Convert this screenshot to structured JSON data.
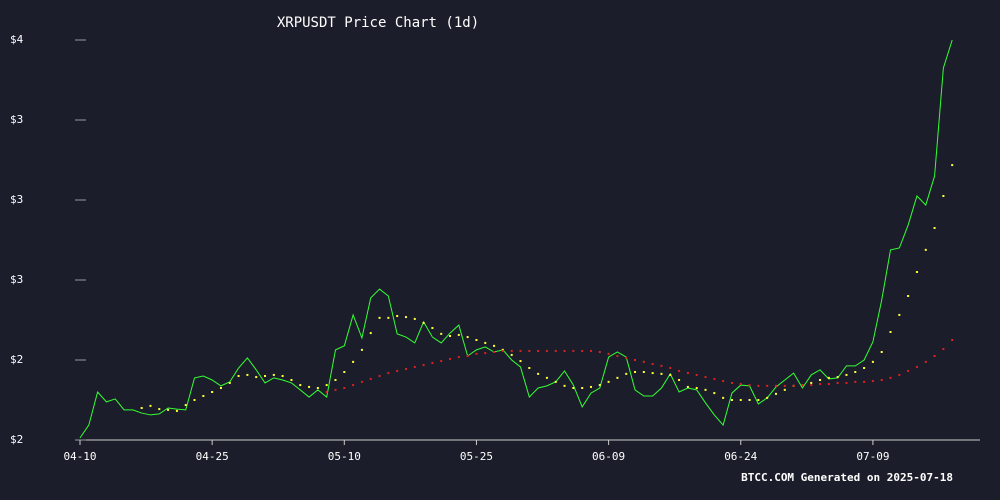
{
  "chart_data": {
    "type": "line",
    "title": "XRPUSDT Price Chart (1d)",
    "footer": "BTCC.COM Generated on 2025-07-18",
    "categories": [
      "04-10",
      null,
      null,
      null,
      null,
      null,
      null,
      null,
      null,
      null,
      null,
      null,
      null,
      null,
      null,
      "04-25",
      null,
      null,
      null,
      null,
      null,
      null,
      null,
      null,
      null,
      null,
      null,
      null,
      null,
      null,
      "05-10",
      null,
      null,
      null,
      null,
      null,
      null,
      null,
      null,
      null,
      null,
      null,
      null,
      null,
      null,
      "05-25",
      null,
      null,
      null,
      null,
      null,
      null,
      null,
      null,
      null,
      null,
      null,
      null,
      null,
      null,
      "06-09",
      null,
      null,
      null,
      null,
      null,
      null,
      null,
      null,
      null,
      null,
      null,
      null,
      null,
      null,
      "06-24",
      null,
      null,
      null,
      null,
      null,
      null,
      null,
      null,
      null,
      null,
      null,
      null,
      null,
      null,
      "07-09",
      null,
      null,
      null,
      null,
      null,
      null,
      null,
      null,
      null
    ],
    "series": [
      {
        "color": "#33ff33",
        "style": "line",
        "values": [
          2.008,
          2.056,
          2.18,
          2.143,
          2.154,
          2.113,
          2.113,
          2.101,
          2.094,
          2.098,
          2.12,
          2.116,
          2.113,
          2.233,
          2.24,
          2.225,
          2.203,
          2.218,
          2.27,
          2.308,
          2.263,
          2.214,
          2.233,
          2.225,
          2.214,
          2.188,
          2.161,
          2.188,
          2.161,
          2.338,
          2.353,
          2.469,
          2.383,
          2.533,
          2.566,
          2.54,
          2.398,
          2.386,
          2.364,
          2.443,
          2.386,
          2.364,
          2.401,
          2.431,
          2.315,
          2.338,
          2.349,
          2.33,
          2.338,
          2.3,
          2.274,
          2.161,
          2.195,
          2.203,
          2.218,
          2.259,
          2.206,
          2.124,
          2.176,
          2.195,
          2.311,
          2.33,
          2.311,
          2.188,
          2.165,
          2.165,
          2.195,
          2.248,
          2.18,
          2.195,
          2.188,
          2.139,
          2.094,
          2.056,
          2.176,
          2.206,
          2.203,
          2.135,
          2.158,
          2.199,
          2.225,
          2.251,
          2.195,
          2.244,
          2.263,
          2.229,
          2.233,
          2.278,
          2.278,
          2.3,
          2.368,
          2.525,
          2.713,
          2.72,
          2.806,
          2.915,
          2.881,
          2.99,
          3.395,
          3.5
        ]
      },
      {
        "color": "#ffff33",
        "style": "dots",
        "values": [
          null,
          null,
          null,
          null,
          null,
          null,
          null,
          2.12,
          2.128,
          2.116,
          2.113,
          2.109,
          2.131,
          2.15,
          2.165,
          2.18,
          2.195,
          2.214,
          2.24,
          2.244,
          2.236,
          2.24,
          2.244,
          2.24,
          2.225,
          2.206,
          2.199,
          2.195,
          2.206,
          2.225,
          2.255,
          2.293,
          2.338,
          2.401,
          2.458,
          2.458,
          2.465,
          2.461,
          2.454,
          2.439,
          2.42,
          2.398,
          2.39,
          2.394,
          2.386,
          2.375,
          2.364,
          2.353,
          2.338,
          2.319,
          2.296,
          2.27,
          2.248,
          2.233,
          2.218,
          2.203,
          2.195,
          2.195,
          2.199,
          2.206,
          2.218,
          2.233,
          2.248,
          2.255,
          2.255,
          2.251,
          2.248,
          2.244,
          2.225,
          2.199,
          2.195,
          2.188,
          2.176,
          2.158,
          2.15,
          2.15,
          2.15,
          2.15,
          2.158,
          2.173,
          2.188,
          2.203,
          2.206,
          2.214,
          2.225,
          2.233,
          2.236,
          2.244,
          2.255,
          2.27,
          2.293,
          2.33,
          2.405,
          2.469,
          2.54,
          2.63,
          2.713,
          2.795,
          2.915,
          3.031
        ]
      },
      {
        "color": "#e02020",
        "style": "dots",
        "values": [
          null,
          null,
          null,
          null,
          null,
          null,
          null,
          null,
          null,
          null,
          null,
          null,
          null,
          null,
          null,
          null,
          null,
          null,
          null,
          null,
          null,
          null,
          null,
          null,
          null,
          null,
          null,
          null,
          2.18,
          2.188,
          2.195,
          2.206,
          2.218,
          2.229,
          2.24,
          2.251,
          2.259,
          2.266,
          2.274,
          2.281,
          2.289,
          2.296,
          2.304,
          2.311,
          2.315,
          2.323,
          2.326,
          2.33,
          2.334,
          2.334,
          2.334,
          2.334,
          2.334,
          2.334,
          2.334,
          2.334,
          2.334,
          2.334,
          2.334,
          2.33,
          2.323,
          2.315,
          2.308,
          2.3,
          2.293,
          2.285,
          2.278,
          2.27,
          2.259,
          2.251,
          2.244,
          2.236,
          2.229,
          2.221,
          2.214,
          2.21,
          2.206,
          2.203,
          2.203,
          2.203,
          2.203,
          2.203,
          2.206,
          2.206,
          2.21,
          2.21,
          2.214,
          2.214,
          2.218,
          2.218,
          2.221,
          2.225,
          2.233,
          2.244,
          2.259,
          2.274,
          2.293,
          2.315,
          2.341,
          2.375
        ]
      }
    ],
    "ylim": [
      2.0,
      3.5
    ],
    "yticks": [
      {
        "value": 2.0,
        "label": "$2"
      },
      {
        "value": 2.3,
        "label": "$2"
      },
      {
        "value": 2.6,
        "label": "$3"
      },
      {
        "value": 2.9,
        "label": "$3"
      },
      {
        "value": 3.2,
        "label": "$3"
      },
      {
        "value": 3.5,
        "label": "$4"
      }
    ]
  }
}
